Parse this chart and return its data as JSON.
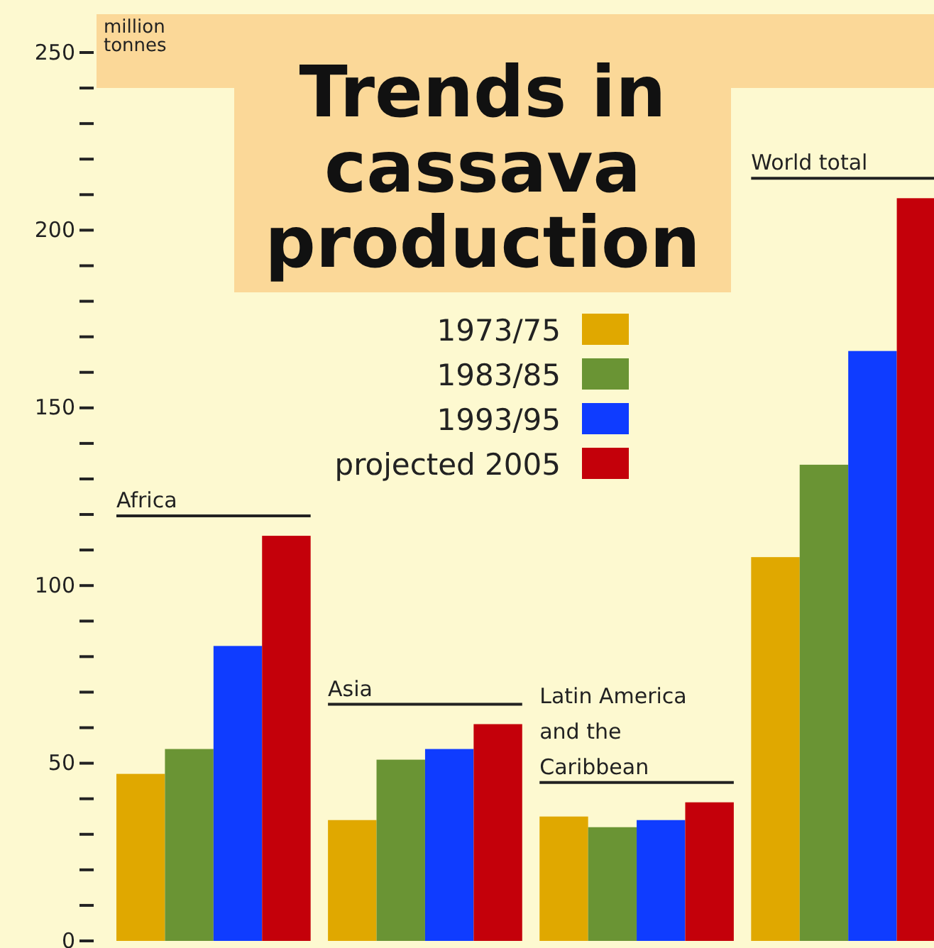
{
  "chart_data": {
    "type": "bar",
    "title": "Trends in cassava production",
    "ylabel": "million tonnes",
    "categories": [
      "Africa",
      "Asia",
      "Latin America and the Caribbean",
      "World total"
    ],
    "series": [
      {
        "name": "1973/75",
        "color": "#e0a800",
        "values": [
          47,
          34,
          35,
          108
        ]
      },
      {
        "name": "1983/85",
        "color": "#6a9434",
        "values": [
          54,
          51,
          32,
          134
        ]
      },
      {
        "name": "1993/95",
        "color": "#0f3cff",
        "values": [
          83,
          54,
          34,
          166
        ]
      },
      {
        "name": "projected 2005",
        "color": "#c4000a",
        "values": [
          114,
          61,
          39,
          209
        ]
      }
    ],
    "ylim": [
      0,
      250
    ],
    "yticks": [
      0,
      {
        "value": 10,
        "label": null
      },
      {
        "value": 20,
        "label": null
      },
      {
        "value": 30,
        "label": null
      },
      {
        "value": 40,
        "label": null
      },
      50,
      {
        "value": 60,
        "label": null
      },
      {
        "value": 70,
        "label": null
      },
      {
        "value": 80,
        "label": null
      },
      {
        "value": 90,
        "label": null
      },
      100,
      {
        "value": 110,
        "label": null
      },
      {
        "value": 120,
        "label": null
      },
      {
        "value": 130,
        "label": null
      },
      {
        "value": 140,
        "label": null
      },
      150,
      {
        "value": 160,
        "label": null
      },
      {
        "value": 170,
        "label": null
      },
      {
        "value": 180,
        "label": null
      },
      {
        "value": 190,
        "label": null
      },
      200,
      {
        "value": 210,
        "label": null
      },
      {
        "value": 220,
        "label": null
      },
      {
        "value": 230,
        "label": null
      },
      {
        "value": 240,
        "label": null
      },
      250
    ],
    "grid": false,
    "legend": "top"
  }
}
